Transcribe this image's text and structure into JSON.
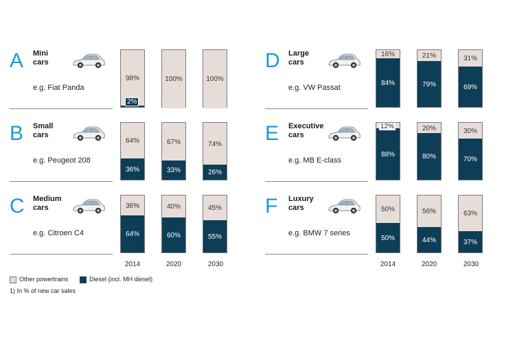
{
  "colors": {
    "diesel": "#0e3d57",
    "other": "#e7ddd8",
    "accent": "#1a9ad6"
  },
  "years": [
    "2014",
    "2020",
    "2030"
  ],
  "legend": {
    "other": "Other powertrains",
    "diesel": "Diesel (incl. MH diesel)"
  },
  "footnote": "1) In % of new car sales",
  "panels": [
    {
      "letter": "A",
      "name": "Mini\ncars",
      "example": "e.g. Fiat Panda",
      "icon": "car-icon"
    },
    {
      "letter": "B",
      "name": "Small\ncars",
      "example": "e.g. Peugeot 208",
      "icon": "car-icon"
    },
    {
      "letter": "C",
      "name": "Medium\ncars",
      "example": "e.g. Citroen C4",
      "icon": "car-icon"
    },
    {
      "letter": "D",
      "name": "Large\ncars",
      "example": "e.g. VW Passat",
      "icon": "car-icon"
    },
    {
      "letter": "E",
      "name": "Executive\ncars",
      "example": "e.g. MB E-class",
      "icon": "car-icon"
    },
    {
      "letter": "F",
      "name": "Luxury\ncars",
      "example": "e.g. BMW 7 series",
      "icon": "car-icon"
    }
  ],
  "chart_data": {
    "type": "bar",
    "stacked": true,
    "categories": [
      "2014",
      "2020",
      "2030"
    ],
    "series_names": [
      "Other powertrains",
      "Diesel (incl. MH diesel)"
    ],
    "groups": [
      {
        "segment": "Mini cars",
        "diesel": [
          2,
          0,
          0
        ],
        "other": [
          98,
          100,
          100
        ],
        "diesel_labels": [
          "2%",
          "",
          ""
        ],
        "other_labels": [
          "98%",
          "100%",
          "100%"
        ]
      },
      {
        "segment": "Small cars",
        "diesel": [
          36,
          33,
          26
        ],
        "other": [
          64,
          67,
          74
        ],
        "diesel_labels": [
          "36%",
          "33%",
          "26%"
        ],
        "other_labels": [
          "64%",
          "67%",
          "74%"
        ]
      },
      {
        "segment": "Medium cars",
        "diesel": [
          64,
          60,
          55
        ],
        "other": [
          36,
          40,
          45
        ],
        "diesel_labels": [
          "64%",
          "60%",
          "55%"
        ],
        "other_labels": [
          "36%",
          "40%",
          "45%"
        ]
      },
      {
        "segment": "Large cars",
        "diesel": [
          84,
          79,
          69
        ],
        "other": [
          16,
          21,
          31
        ],
        "diesel_labels": [
          "84%",
          "79%",
          "69%"
        ],
        "other_labels": [
          "16%",
          "21%",
          "31%"
        ]
      },
      {
        "segment": "Executive cars",
        "diesel": [
          88,
          80,
          70
        ],
        "other": [
          12,
          20,
          30
        ],
        "diesel_labels": [
          "88%",
          "80%",
          "70%"
        ],
        "other_labels": [
          "12%",
          "20%",
          "30%"
        ]
      },
      {
        "segment": "Luxury cars",
        "diesel": [
          50,
          44,
          37
        ],
        "other": [
          50,
          56,
          63
        ],
        "diesel_labels": [
          "50%",
          "44%",
          "37%"
        ],
        "other_labels": [
          "50%",
          "56%",
          "63%"
        ]
      }
    ]
  }
}
